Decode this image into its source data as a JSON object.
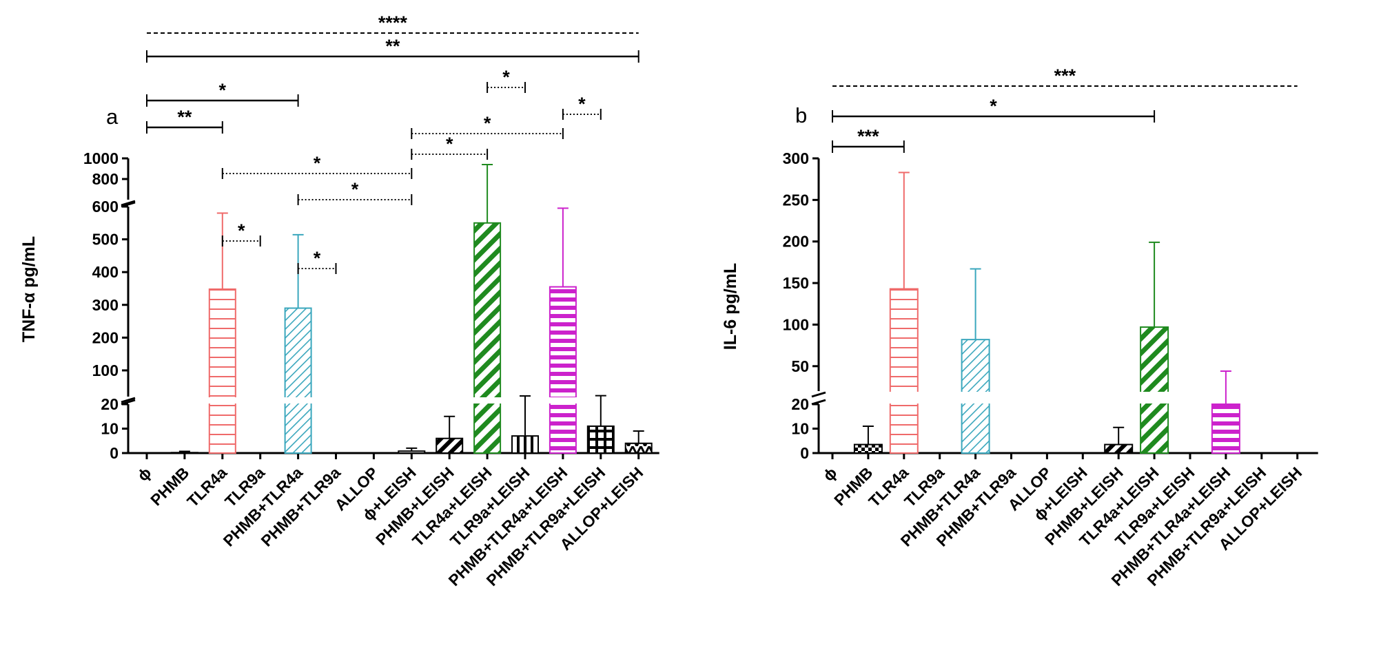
{
  "chart_data": [
    {
      "type": "bar",
      "panel_label": "a",
      "ylabel": "TNF-α pg/mL",
      "categories": [
        "ϕ",
        "PHMB",
        "TLR4a",
        "TLR9a",
        "PHMB+TLR4a",
        "PHMB+TLR9a",
        "ALLOP",
        "ϕ+LEISH",
        "PHMB+LEISH",
        "TLR4a+LEISH",
        "TLR9a+LEISH",
        "PHMB+TLR4a+LEISH",
        "PHMB+TLR9a+LEISH",
        "ALLOP+LEISH"
      ],
      "values": [
        0,
        0.2,
        348,
        0,
        290,
        0,
        0,
        0.8,
        6,
        550,
        7,
        355,
        11,
        4
      ],
      "errors": [
        0,
        0.5,
        232,
        0,
        224,
        0,
        0,
        1.2,
        9,
        390,
        15,
        240,
        12,
        5
      ],
      "colors": [
        "#000000",
        "#000000",
        "#ef6a6a",
        "#000000",
        "#3aa7bd",
        "#000000",
        "#000000",
        "#000000",
        "#000000",
        "#1f8a1f",
        "#000000",
        "#cc22cc",
        "#000000",
        "#000000"
      ],
      "patterns": [
        "none",
        "none",
        "hstripes",
        "none",
        "thindiag",
        "none",
        "none",
        "none",
        "diag",
        "thickdiag",
        "vstripes",
        "hthick",
        "grid",
        "zigzag"
      ],
      "y_segments": [
        {
          "range": [
            0,
            20
          ],
          "ticks": [
            "0",
            "10",
            "20"
          ]
        },
        {
          "range": [
            20,
            600
          ],
          "ticks": [
            "100",
            "200",
            "300",
            "400",
            "500",
            "600"
          ]
        },
        {
          "range": [
            600,
            1000
          ],
          "ticks": [
            "800",
            "1000"
          ]
        }
      ],
      "significance": [
        {
          "from": 0,
          "to": 13,
          "label": "****",
          "style": "dashed"
        },
        {
          "from": 0,
          "to": 13,
          "label": "**",
          "style": "solid"
        },
        {
          "from": 0,
          "to": 4,
          "label": "*",
          "style": "solid"
        },
        {
          "from": 0,
          "to": 2,
          "label": "**",
          "style": "solid"
        },
        {
          "from": 2,
          "to": 7,
          "label": "*",
          "style": "dotted"
        },
        {
          "from": 4,
          "to": 7,
          "label": "*",
          "style": "dotted"
        },
        {
          "from": 2,
          "to": 3,
          "label": "*",
          "style": "dotted"
        },
        {
          "from": 4,
          "to": 5,
          "label": "*",
          "style": "dotted"
        },
        {
          "from": 7,
          "to": 11,
          "label": "*",
          "style": "dotted"
        },
        {
          "from": 7,
          "to": 9,
          "label": "*",
          "style": "dotted"
        },
        {
          "from": 9,
          "to": 10,
          "label": "*",
          "style": "dotted"
        },
        {
          "from": 11,
          "to": 12,
          "label": "*",
          "style": "dotted"
        }
      ]
    },
    {
      "type": "bar",
      "panel_label": "b",
      "ylabel": "IL-6 pg/mL",
      "categories": [
        "ϕ",
        "PHMB",
        "TLR4a",
        "TLR9a",
        "PHMB+TLR4a",
        "PHMB+TLR9a",
        "ALLOP",
        "ϕ+LEISH",
        "PHMB+LEISH",
        "TLR4a+LEISH",
        "TLR9a+LEISH",
        "PHMB+TLR4a+LEISH",
        "PHMB+TLR9a+LEISH",
        "ALLOP+LEISH"
      ],
      "values": [
        0,
        3.5,
        143,
        0,
        82,
        0,
        0,
        0,
        3.5,
        97,
        0,
        20,
        0,
        0
      ],
      "errors": [
        0,
        7.5,
        140,
        0,
        85,
        0,
        0,
        0,
        7,
        102,
        0,
        24,
        0,
        0
      ],
      "colors": [
        "#000000",
        "#000000",
        "#ef6a6a",
        "#000000",
        "#3aa7bd",
        "#000000",
        "#000000",
        "#000000",
        "#000000",
        "#1f8a1f",
        "#000000",
        "#cc22cc",
        "#000000",
        "#000000"
      ],
      "patterns": [
        "none",
        "checker",
        "hstripes",
        "none",
        "thindiag",
        "none",
        "none",
        "none",
        "diag",
        "thickdiag",
        "none",
        "hthick",
        "none",
        "none"
      ],
      "y_segments": [
        {
          "range": [
            0,
            20
          ],
          "ticks": [
            "0",
            "10",
            "20"
          ]
        },
        {
          "range": [
            20,
            300
          ],
          "ticks": [
            "50",
            "100",
            "150",
            "200",
            "250",
            "300"
          ]
        }
      ],
      "significance": [
        {
          "from": 0,
          "to": 13,
          "label": "***",
          "style": "dashed"
        },
        {
          "from": 0,
          "to": 9,
          "label": "*",
          "style": "solid"
        },
        {
          "from": 0,
          "to": 2,
          "label": "***",
          "style": "solid"
        }
      ]
    }
  ]
}
